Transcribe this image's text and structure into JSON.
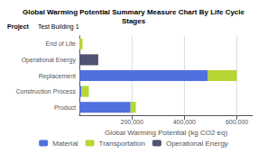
{
  "chart_data": {
    "type": "bar",
    "orientation": "horizontal",
    "stacked": true,
    "title": "Global Warming Potential Summary Measure Chart By Life Cycle\nStages",
    "annotations": [
      "Project",
      "Test Building 1"
    ],
    "xlabel": "Global Warming Potential (kg CO2 eq)",
    "categories": [
      "Product",
      "Construction Process",
      "Replacement",
      "Operational Energy",
      "End of Life"
    ],
    "series": [
      {
        "name": "Material",
        "values": [
          195000,
          8000,
          490000,
          0,
          0
        ]
      },
      {
        "name": "Transportation",
        "values": [
          20000,
          28000,
          110000,
          0,
          12000
        ]
      },
      {
        "name": "Operational Energy",
        "values": [
          0,
          0,
          0,
          72000,
          0
        ]
      }
    ],
    "xlim": [
      0,
      660000
    ],
    "xticks": [
      {
        "value": 200000,
        "label": "200,000"
      },
      {
        "value": 400000,
        "label": "400,000"
      },
      {
        "value": 600000,
        "label": "600,000"
      }
    ],
    "grid": true,
    "legend": "bottom"
  }
}
